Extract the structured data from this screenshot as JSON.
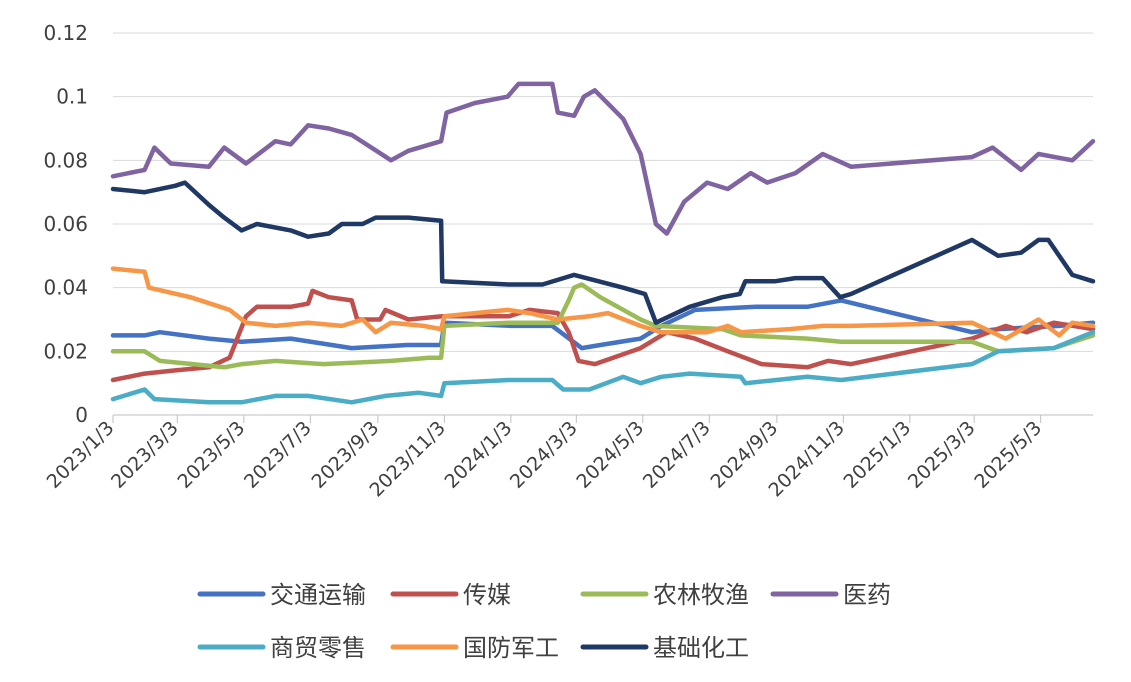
{
  "chart_data": {
    "type": "line",
    "title": "",
    "xlabel": "",
    "ylabel": "",
    "ylim": [
      0,
      0.12
    ],
    "yticks": [
      "0",
      "0.02",
      "0.04",
      "0.06",
      "0.08",
      "0.1",
      "0.12"
    ],
    "xticks": [
      "2023/1/3",
      "2023/3/3",
      "2023/5/3",
      "2023/7/3",
      "2023/9/3",
      "2023/11/3",
      "2024/1/3",
      "2024/3/3",
      "2024/5/3",
      "2024/7/3",
      "2024/9/3",
      "2024/11/3",
      "2025/1/3",
      "2025/3/3",
      "2025/5/3"
    ],
    "grid": "horizontal",
    "legend_position": "bottom",
    "series": [
      {
        "name": "交通运输",
        "color": "#4472C4",
        "points": [
          [
            "2023-01-03",
            0.025
          ],
          [
            "2023-02-01",
            0.025
          ],
          [
            "2023-02-15",
            0.026
          ],
          [
            "2023-04-01",
            0.024
          ],
          [
            "2023-05-01",
            0.023
          ],
          [
            "2023-06-15",
            0.024
          ],
          [
            "2023-08-10",
            0.021
          ],
          [
            "2023-09-30",
            0.022
          ],
          [
            "2023-10-31",
            0.022
          ],
          [
            "2023-11-03",
            0.029
          ],
          [
            "2024-01-03",
            0.028
          ],
          [
            "2024-02-10",
            0.028
          ],
          [
            "2024-03-08",
            0.021
          ],
          [
            "2024-03-25",
            0.022
          ],
          [
            "2024-05-01",
            0.024
          ],
          [
            "2024-05-20",
            0.028
          ],
          [
            "2024-06-20",
            0.033
          ],
          [
            "2024-08-15",
            0.034
          ],
          [
            "2024-10-01",
            0.034
          ],
          [
            "2024-11-01",
            0.036
          ],
          [
            "2025-03-01",
            0.026
          ],
          [
            "2025-03-25",
            0.027
          ],
          [
            "2025-05-20",
            0.028
          ],
          [
            "2025-06-20",
            0.029
          ]
        ]
      },
      {
        "name": "传媒",
        "color": "#C0504D",
        "points": [
          [
            "2023-01-03",
            0.011
          ],
          [
            "2023-02-01",
            0.013
          ],
          [
            "2023-03-01",
            0.014
          ],
          [
            "2023-04-01",
            0.015
          ],
          [
            "2023-04-20",
            0.018
          ],
          [
            "2023-05-05",
            0.031
          ],
          [
            "2023-05-15",
            0.034
          ],
          [
            "2023-06-15",
            0.034
          ],
          [
            "2023-07-01",
            0.035
          ],
          [
            "2023-07-05",
            0.039
          ],
          [
            "2023-07-20",
            0.037
          ],
          [
            "2023-08-10",
            0.036
          ],
          [
            "2023-08-15",
            0.03
          ],
          [
            "2023-09-05",
            0.03
          ],
          [
            "2023-09-10",
            0.033
          ],
          [
            "2023-10-01",
            0.03
          ],
          [
            "2023-11-01",
            0.031
          ],
          [
            "2024-01-01",
            0.031
          ],
          [
            "2024-01-20",
            0.033
          ],
          [
            "2024-02-15",
            0.032
          ],
          [
            "2024-02-25",
            0.026
          ],
          [
            "2024-03-05",
            0.017
          ],
          [
            "2024-03-20",
            0.016
          ],
          [
            "2024-05-01",
            0.021
          ],
          [
            "2024-05-25",
            0.026
          ],
          [
            "2024-06-20",
            0.024
          ],
          [
            "2024-07-20",
            0.02
          ],
          [
            "2024-08-20",
            0.016
          ],
          [
            "2024-10-01",
            0.015
          ],
          [
            "2024-10-20",
            0.017
          ],
          [
            "2024-11-10",
            0.016
          ],
          [
            "2025-03-01",
            0.024
          ],
          [
            "2025-04-01",
            0.028
          ],
          [
            "2025-04-20",
            0.026
          ],
          [
            "2025-05-15",
            0.029
          ],
          [
            "2025-06-20",
            0.027
          ]
        ]
      },
      {
        "name": "农林牧渔",
        "color": "#9BBB59",
        "points": [
          [
            "2023-01-03",
            0.02
          ],
          [
            "2023-02-01",
            0.02
          ],
          [
            "2023-02-15",
            0.017
          ],
          [
            "2023-04-15",
            0.015
          ],
          [
            "2023-05-01",
            0.016
          ],
          [
            "2023-06-01",
            0.017
          ],
          [
            "2023-07-15",
            0.016
          ],
          [
            "2023-09-15",
            0.017
          ],
          [
            "2023-10-20",
            0.018
          ],
          [
            "2023-10-31",
            0.018
          ],
          [
            "2023-11-03",
            0.028
          ],
          [
            "2024-01-01",
            0.029
          ],
          [
            "2024-02-15",
            0.029
          ],
          [
            "2024-02-25",
            0.036
          ],
          [
            "2024-03-01",
            0.04
          ],
          [
            "2024-03-08",
            0.041
          ],
          [
            "2024-03-25",
            0.037
          ],
          [
            "2024-05-01",
            0.03
          ],
          [
            "2024-05-15",
            0.028
          ],
          [
            "2024-07-15",
            0.027
          ],
          [
            "2024-08-01",
            0.025
          ],
          [
            "2024-10-01",
            0.024
          ],
          [
            "2024-11-01",
            0.023
          ],
          [
            "2025-03-01",
            0.023
          ],
          [
            "2025-03-25",
            0.02
          ],
          [
            "2025-05-15",
            0.021
          ],
          [
            "2025-06-20",
            0.025
          ]
        ]
      },
      {
        "name": "医药",
        "color": "#8064A2",
        "points": [
          [
            "2023-01-03",
            0.075
          ],
          [
            "2023-02-01",
            0.077
          ],
          [
            "2023-02-10",
            0.084
          ],
          [
            "2023-02-25",
            0.079
          ],
          [
            "2023-04-01",
            0.078
          ],
          [
            "2023-04-15",
            0.084
          ],
          [
            "2023-05-05",
            0.079
          ],
          [
            "2023-06-01",
            0.086
          ],
          [
            "2023-06-15",
            0.085
          ],
          [
            "2023-07-01",
            0.091
          ],
          [
            "2023-07-20",
            0.09
          ],
          [
            "2023-08-10",
            0.088
          ],
          [
            "2023-09-15",
            0.08
          ],
          [
            "2023-10-01",
            0.083
          ],
          [
            "2023-10-31",
            0.086
          ],
          [
            "2023-11-05",
            0.095
          ],
          [
            "2023-12-01",
            0.098
          ],
          [
            "2023-12-31",
            0.1
          ],
          [
            "2024-01-10",
            0.104
          ],
          [
            "2024-02-10",
            0.104
          ],
          [
            "2024-02-15",
            0.095
          ],
          [
            "2024-03-01",
            0.094
          ],
          [
            "2024-03-10",
            0.1
          ],
          [
            "2024-03-20",
            0.102
          ],
          [
            "2024-04-15",
            0.093
          ],
          [
            "2024-05-01",
            0.082
          ],
          [
            "2024-05-15",
            0.06
          ],
          [
            "2024-05-25",
            0.057
          ],
          [
            "2024-06-10",
            0.067
          ],
          [
            "2024-07-01",
            0.073
          ],
          [
            "2024-07-20",
            0.071
          ],
          [
            "2024-08-10",
            0.076
          ],
          [
            "2024-08-25",
            0.073
          ],
          [
            "2024-09-20",
            0.076
          ],
          [
            "2024-10-15",
            0.082
          ],
          [
            "2024-11-10",
            0.078
          ],
          [
            "2025-03-01",
            0.081
          ],
          [
            "2025-03-20",
            0.084
          ],
          [
            "2025-04-15",
            0.077
          ],
          [
            "2025-05-01",
            0.082
          ],
          [
            "2025-06-01",
            0.08
          ],
          [
            "2025-06-20",
            0.086
          ]
        ]
      },
      {
        "name": "商贸零售",
        "color": "#4BACC6",
        "points": [
          [
            "2023-01-03",
            0.005
          ],
          [
            "2023-02-01",
            0.008
          ],
          [
            "2023-02-10",
            0.005
          ],
          [
            "2023-04-01",
            0.004
          ],
          [
            "2023-05-01",
            0.004
          ],
          [
            "2023-06-01",
            0.006
          ],
          [
            "2023-07-01",
            0.006
          ],
          [
            "2023-08-10",
            0.004
          ],
          [
            "2023-09-10",
            0.006
          ],
          [
            "2023-10-10",
            0.007
          ],
          [
            "2023-10-31",
            0.006
          ],
          [
            "2023-11-03",
            0.01
          ],
          [
            "2024-01-01",
            0.011
          ],
          [
            "2024-02-10",
            0.011
          ],
          [
            "2024-02-20",
            0.008
          ],
          [
            "2024-03-15",
            0.008
          ],
          [
            "2024-04-15",
            0.012
          ],
          [
            "2024-05-01",
            0.01
          ],
          [
            "2024-05-20",
            0.012
          ],
          [
            "2024-06-15",
            0.013
          ],
          [
            "2024-08-01",
            0.012
          ],
          [
            "2024-08-05",
            0.01
          ],
          [
            "2024-10-01",
            0.012
          ],
          [
            "2024-11-01",
            0.011
          ],
          [
            "2025-03-01",
            0.016
          ],
          [
            "2025-03-25",
            0.02
          ],
          [
            "2025-05-15",
            0.021
          ],
          [
            "2025-06-20",
            0.026
          ]
        ]
      },
      {
        "name": "国防军工",
        "color": "#F79646",
        "points": [
          [
            "2023-01-03",
            0.046
          ],
          [
            "2023-02-01",
            0.045
          ],
          [
            "2023-02-05",
            0.04
          ],
          [
            "2023-03-15",
            0.037
          ],
          [
            "2023-04-20",
            0.033
          ],
          [
            "2023-05-05",
            0.029
          ],
          [
            "2023-06-01",
            0.028
          ],
          [
            "2023-07-01",
            0.029
          ],
          [
            "2023-08-01",
            0.028
          ],
          [
            "2023-08-20",
            0.03
          ],
          [
            "2023-09-01",
            0.026
          ],
          [
            "2023-09-15",
            0.029
          ],
          [
            "2023-10-15",
            0.028
          ],
          [
            "2023-10-31",
            0.027
          ],
          [
            "2023-11-03",
            0.031
          ],
          [
            "2023-12-31",
            0.033
          ],
          [
            "2024-01-20",
            0.032
          ],
          [
            "2024-02-15",
            0.03
          ],
          [
            "2024-03-15",
            0.031
          ],
          [
            "2024-04-01",
            0.032
          ],
          [
            "2024-05-01",
            0.028
          ],
          [
            "2024-05-20",
            0.026
          ],
          [
            "2024-07-01",
            0.026
          ],
          [
            "2024-07-20",
            0.028
          ],
          [
            "2024-08-01",
            0.026
          ],
          [
            "2024-09-15",
            0.027
          ],
          [
            "2024-10-15",
            0.028
          ],
          [
            "2024-11-10",
            0.028
          ],
          [
            "2025-03-01",
            0.029
          ],
          [
            "2025-04-01",
            0.024
          ],
          [
            "2025-05-01",
            0.03
          ],
          [
            "2025-05-20",
            0.025
          ],
          [
            "2025-06-01",
            0.029
          ],
          [
            "2025-06-20",
            0.028
          ]
        ]
      },
      {
        "name": "基础化工",
        "color": "#1F3864",
        "points": [
          [
            "2023-01-03",
            0.071
          ],
          [
            "2023-02-01",
            0.07
          ],
          [
            "2023-03-01",
            0.072
          ],
          [
            "2023-03-10",
            0.073
          ],
          [
            "2023-04-01",
            0.066
          ],
          [
            "2023-04-15",
            0.062
          ],
          [
            "2023-05-01",
            0.058
          ],
          [
            "2023-05-15",
            0.06
          ],
          [
            "2023-06-15",
            0.058
          ],
          [
            "2023-07-01",
            0.056
          ],
          [
            "2023-07-20",
            0.057
          ],
          [
            "2023-08-01",
            0.06
          ],
          [
            "2023-08-20",
            0.06
          ],
          [
            "2023-09-01",
            0.062
          ],
          [
            "2023-10-01",
            0.062
          ],
          [
            "2023-10-31",
            0.061
          ],
          [
            "2023-11-01",
            0.042
          ],
          [
            "2024-01-01",
            0.041
          ],
          [
            "2024-02-01",
            0.041
          ],
          [
            "2024-03-01",
            0.044
          ],
          [
            "2024-04-15",
            0.04
          ],
          [
            "2024-05-05",
            0.038
          ],
          [
            "2024-05-15",
            0.029
          ],
          [
            "2024-06-15",
            0.034
          ],
          [
            "2024-07-15",
            0.037
          ],
          [
            "2024-07-31",
            0.038
          ],
          [
            "2024-08-05",
            0.042
          ],
          [
            "2024-09-01",
            0.042
          ],
          [
            "2024-09-20",
            0.043
          ],
          [
            "2024-10-15",
            0.043
          ],
          [
            "2024-10-31",
            0.037
          ],
          [
            "2024-11-10",
            0.038
          ],
          [
            "2025-03-01",
            0.055
          ],
          [
            "2025-03-25",
            0.05
          ],
          [
            "2025-04-15",
            0.051
          ],
          [
            "2025-05-01",
            0.055
          ],
          [
            "2025-05-10",
            0.055
          ],
          [
            "2025-06-01",
            0.044
          ],
          [
            "2025-06-20",
            0.042
          ]
        ]
      }
    ]
  }
}
